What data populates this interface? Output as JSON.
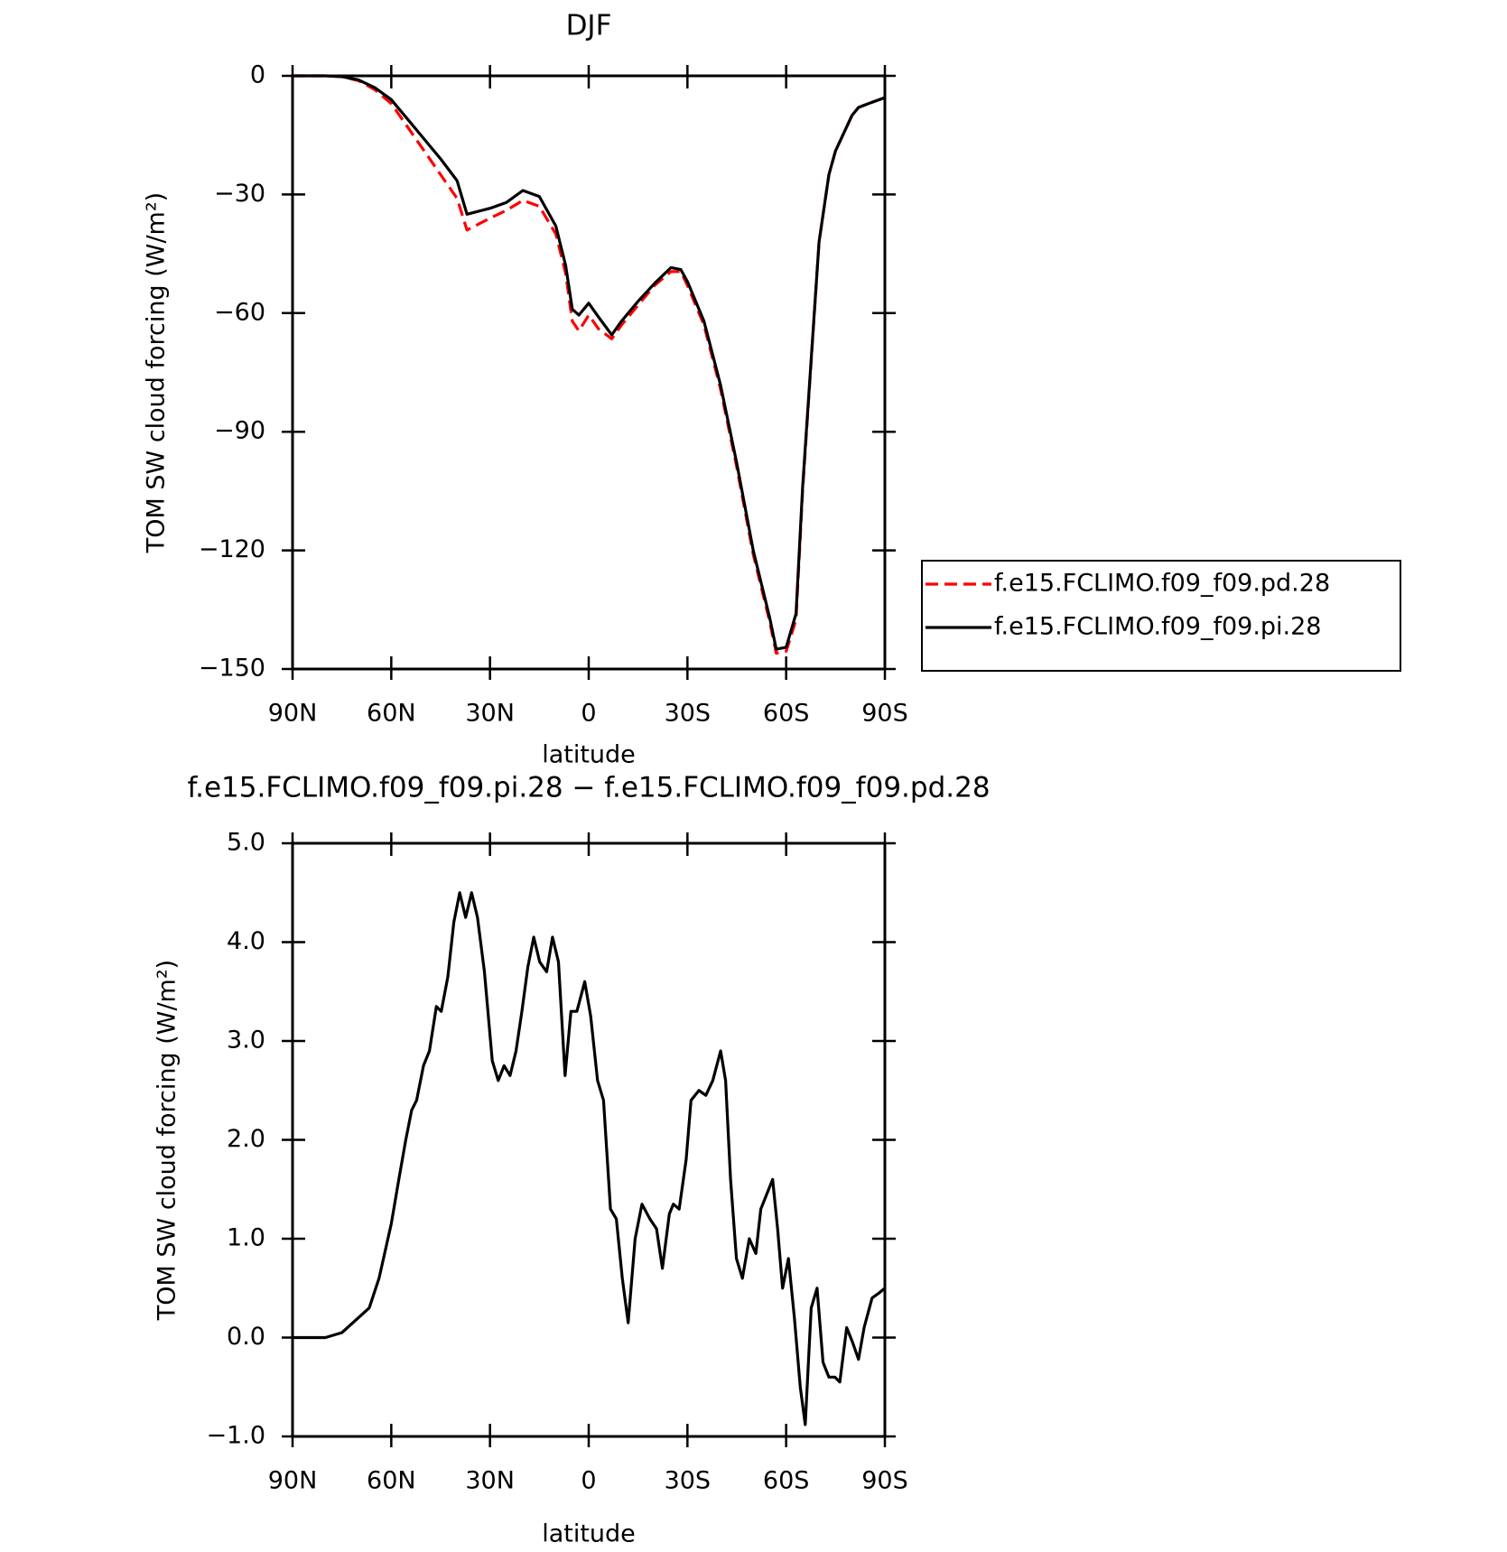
{
  "chart_data": [
    {
      "type": "line",
      "title": "DJF",
      "x_label": "latitude",
      "y_label": "TOM SW cloud forcing (W/m²)",
      "x": [
        90,
        80,
        75,
        70,
        65,
        60,
        55,
        50,
        45,
        40,
        37,
        30,
        25,
        20,
        15,
        10,
        7,
        5,
        3,
        0,
        -3,
        -7,
        -10,
        -15,
        -20,
        -25,
        -28,
        -30,
        -35,
        -40,
        -45,
        -50,
        -55,
        -57,
        -60,
        -63,
        -65,
        -70,
        -73,
        -75,
        -80,
        -82,
        -85,
        -90
      ],
      "series": [
        {
          "name": "f.e15.FCLIMO.f09_f09.pd.28",
          "color": "#ff0000",
          "dash": true,
          "values": [
            0,
            0,
            -0.2,
            -1.2,
            -3.5,
            -7,
            -13,
            -19,
            -25,
            -31,
            -39,
            -36,
            -34,
            -31.5,
            -33,
            -40,
            -50,
            -62,
            -64.5,
            -60.5,
            -64,
            -66.5,
            -63,
            -58,
            -53,
            -49.5,
            -49.5,
            -53,
            -63,
            -79,
            -99,
            -121,
            -138,
            -146,
            -145.5,
            -137.5,
            -105,
            -42,
            -25,
            -19,
            -10,
            -8,
            -7,
            -5.5
          ]
        },
        {
          "name": "f.e15.FCLIMO.f09_f09.pi.28",
          "color": "#000000",
          "dash": false,
          "values": [
            0,
            0,
            -0.2,
            -1,
            -3,
            -6,
            -11,
            -16,
            -21,
            -26.5,
            -35,
            -33.5,
            -32,
            -29,
            -30.5,
            -38,
            -48,
            -59,
            -60.5,
            -57.5,
            -61,
            -65.5,
            -62,
            -57,
            -52.5,
            -48.5,
            -49,
            -52,
            -62,
            -78,
            -98,
            -120,
            -137,
            -145,
            -144.5,
            -136,
            -104,
            -42,
            -25,
            -19,
            -10,
            -8,
            -7,
            -5.5
          ]
        }
      ],
      "xlim": [
        90,
        -90
      ],
      "xticks": [
        {
          "value": 90,
          "label": "90N"
        },
        {
          "value": 60,
          "label": "60N"
        },
        {
          "value": 30,
          "label": "30N"
        },
        0,
        {
          "value": -30,
          "label": "30S"
        },
        {
          "value": -60,
          "label": "60S"
        },
        {
          "value": -90,
          "label": "90S"
        }
      ],
      "ylim": [
        -150,
        0
      ],
      "yticks": [
        0,
        {
          "value": -30,
          "label": "−30"
        },
        {
          "value": -60,
          "label": "−60"
        },
        {
          "value": -90,
          "label": "−90"
        },
        {
          "value": -120,
          "label": "−120"
        },
        {
          "value": -150,
          "label": "−150"
        }
      ],
      "legend": "right"
    },
    {
      "type": "line",
      "title": "f.e15.FCLIMO.f09_f09.pi.28 − f.e15.FCLIMO.f09_f09.pd.28",
      "x_label": "latitude",
      "y_label": "TOM SW cloud forcing (W/m²)",
      "x": [
        90,
        80,
        75,
        70,
        66.7,
        63.7,
        60,
        57.7,
        55.6,
        53.8,
        52.3,
        50.2,
        48.4,
        46.3,
        44.8,
        42.8,
        41,
        39.2,
        37.4,
        35.6,
        33.8,
        31.7,
        29.3,
        27.5,
        25.7,
        23.9,
        22.1,
        20.3,
        18.5,
        16.7,
        14.9,
        12.8,
        11,
        9.2,
        7.2,
        5.4,
        3.6,
        1.2,
        -0.6,
        -2.7,
        -4.5,
        -6.6,
        -8.4,
        -10.2,
        -12,
        -14.1,
        -16.2,
        -18.6,
        -20.6,
        -22.4,
        -24.5,
        -25.7,
        -27.5,
        -29.6,
        -31.1,
        -33.5,
        -35.6,
        -37.7,
        -40.1,
        -41.6,
        -43.1,
        -44.9,
        -46.7,
        -48.8,
        -50.8,
        -52.3,
        -55.9,
        -57.4,
        -58.9,
        -60.7,
        -62.5,
        -64.3,
        -65.8,
        -67.6,
        -69.4,
        -71.2,
        -73,
        -74.8,
        -76.3,
        -78.4,
        -80.2,
        -82,
        -83.7,
        -86.1,
        -88.2,
        -90
      ],
      "series": [
        {
          "color": "#000000",
          "dash": false,
          "values": [
            0,
            0,
            0.05,
            0.2,
            0.3,
            0.6,
            1.15,
            1.6,
            2.0,
            2.3,
            2.4,
            2.75,
            2.9,
            3.35,
            3.3,
            3.65,
            4.2,
            4.5,
            4.25,
            4.5,
            4.25,
            3.7,
            2.8,
            2.6,
            2.75,
            2.65,
            2.9,
            3.3,
            3.75,
            4.05,
            3.8,
            3.7,
            4.05,
            3.8,
            2.65,
            3.3,
            3.3,
            3.6,
            3.25,
            2.6,
            2.4,
            1.3,
            1.2,
            0.6,
            0.15,
            1.0,
            1.35,
            1.2,
            1.1,
            0.7,
            1.25,
            1.35,
            1.3,
            1.8,
            2.4,
            2.5,
            2.45,
            2.6,
            2.9,
            2.6,
            1.6,
            0.8,
            0.6,
            1.0,
            0.85,
            1.3,
            1.6,
            1.1,
            0.5,
            0.8,
            0.2,
            -0.5,
            -0.88,
            0.3,
            0.5,
            -0.25,
            -0.4,
            -0.4,
            -0.45,
            0.1,
            -0.05,
            -0.22,
            0.1,
            0.4,
            0.45,
            0.5
          ]
        }
      ],
      "xlim": [
        90,
        -90
      ],
      "xticks": [
        {
          "value": 90,
          "label": "90N"
        },
        {
          "value": 60,
          "label": "60N"
        },
        {
          "value": 30,
          "label": "30N"
        },
        0,
        {
          "value": -30,
          "label": "30S"
        },
        {
          "value": -60,
          "label": "60S"
        },
        {
          "value": -90,
          "label": "90S"
        }
      ],
      "ylim": [
        -1,
        5
      ],
      "yticks": [
        {
          "value": 5,
          "label": "5.0"
        },
        {
          "value": 4,
          "label": "4.0"
        },
        {
          "value": 3,
          "label": "3.0"
        },
        {
          "value": 2,
          "label": "2.0"
        },
        {
          "value": 1,
          "label": "1.0"
        },
        {
          "value": 0,
          "label": "0.0"
        },
        {
          "value": -1,
          "label": "−1.0"
        }
      ]
    }
  ]
}
